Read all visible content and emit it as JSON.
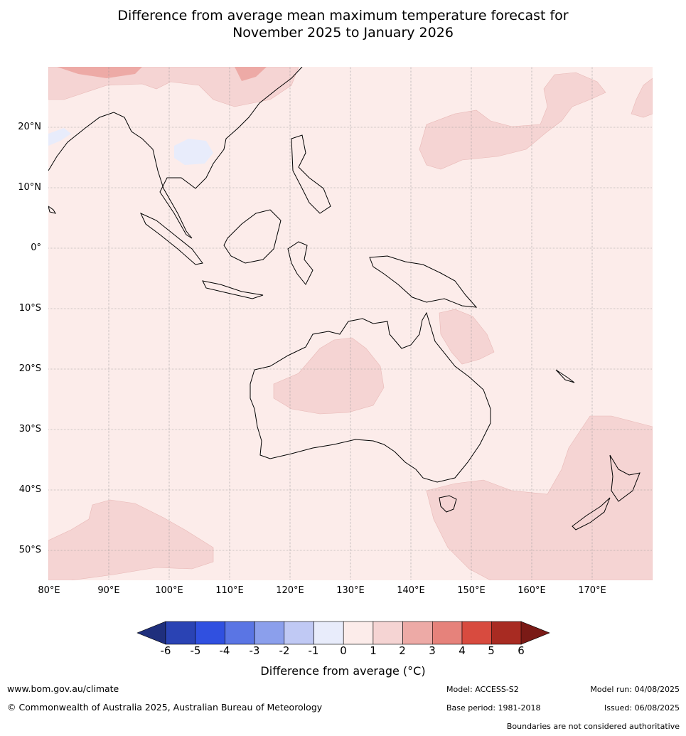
{
  "title_line1": "Difference from average mean maximum temperature forecast for",
  "title_line2": "November 2025 to January 2026",
  "latitude_labels": [
    "20°N",
    "10°N",
    "0°",
    "10°S",
    "20°S",
    "30°S",
    "40°S",
    "50°S"
  ],
  "longitude_labels": [
    "80°E",
    "90°E",
    "100°E",
    "110°E",
    "120°E",
    "130°E",
    "140°E",
    "150°E",
    "160°E",
    "170°E"
  ],
  "colorbar": {
    "ticks": [
      "-6",
      "-5",
      "-4",
      "-3",
      "-2",
      "-1",
      "0",
      "1",
      "2",
      "3",
      "4",
      "5",
      "6"
    ],
    "colors": [
      "#1f2f7d",
      "#2a43b4",
      "#3050e0",
      "#5a75e4",
      "#8b9fec",
      "#c0c9f4",
      "#e8ecfb",
      "#fcecea",
      "#f5d4d3",
      "#edaaa6",
      "#e6827b",
      "#d84b3f",
      "#a82b22",
      "#7a1a16"
    ],
    "label": "Difference from average (°C)"
  },
  "footer": {
    "url": "www.bom.gov.au/climate",
    "copyright": "© Commonwealth of Australia 2025, Australian Bureau of Meteorology",
    "model": "Model: ACCESS-S2",
    "base_period": "Base period: 1981-2018",
    "model_run": "Model run: 04/08/2025",
    "issued": "Issued: 06/08/2025",
    "boundaries": "Boundaries are not considered authoritative"
  }
}
